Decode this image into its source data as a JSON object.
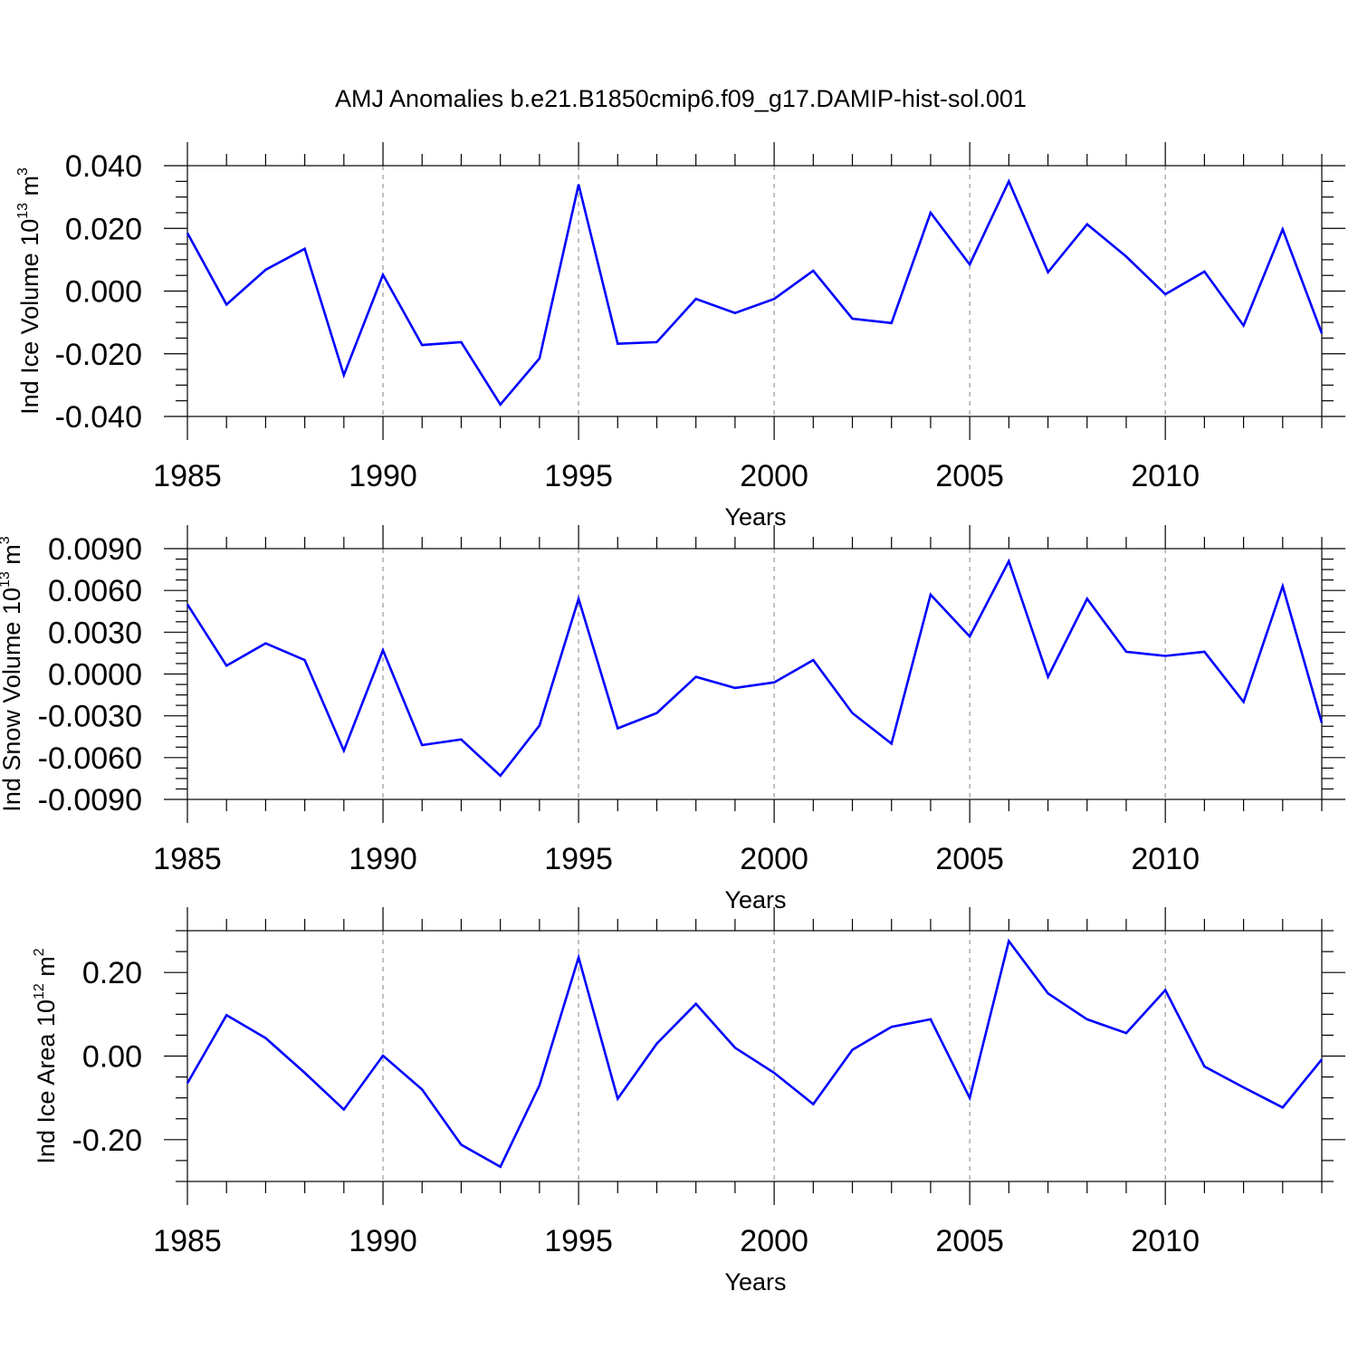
{
  "title": "AMJ Anomalies b.e21.B1850cmip6.f09_g17.DAMIP-hist-sol.001",
  "colors": {
    "series": "#0000ff",
    "axis": "#000000",
    "grid": "#999999"
  },
  "chart_data": [
    {
      "type": "line",
      "name": "ice-volume",
      "ylabel_main": "Ind Ice Volume 10",
      "ylabel_exp": "13",
      "ylabel_unit": " m",
      "ylabel_unit_exp": "3",
      "xlabel": "Years",
      "xlim": [
        1985,
        2014
      ],
      "ylim": [
        -0.04,
        0.04
      ],
      "yticks": [
        -0.04,
        -0.02,
        0.0,
        0.02,
        0.04
      ],
      "ytick_labels": [
        "-0.040",
        "-0.020",
        "0.000",
        "0.020",
        "0.040"
      ],
      "xticks": [
        1985,
        1990,
        1995,
        2000,
        2005,
        2010
      ],
      "xtick_labels": [
        "1985",
        "1990",
        "1995",
        "2000",
        "2005",
        "2010"
      ],
      "gridlines_x": [
        1990,
        1995,
        2000,
        2005,
        2010
      ],
      "x": [
        1985,
        1986,
        1987,
        1988,
        1989,
        1990,
        1991,
        1992,
        1993,
        1994,
        1995,
        1996,
        1997,
        1998,
        1999,
        2000,
        2001,
        2002,
        2003,
        2004,
        2005,
        2006,
        2007,
        2008,
        2009,
        2010,
        2011,
        2012,
        2013,
        2014
      ],
      "values": [
        0.0185,
        -0.0043,
        0.0068,
        0.0135,
        -0.0268,
        0.0052,
        -0.0172,
        -0.0163,
        -0.0362,
        -0.0215,
        0.034,
        -0.0168,
        -0.0163,
        -0.0025,
        -0.007,
        -0.0025,
        0.0065,
        -0.0088,
        -0.0102,
        0.025,
        0.0085,
        0.035,
        0.006,
        0.0213,
        0.011,
        -0.001,
        0.0062,
        -0.011,
        0.0197,
        -0.0135
      ]
    },
    {
      "type": "line",
      "name": "snow-volume",
      "ylabel_main": "Ind Snow Volume 10",
      "ylabel_exp": "13",
      "ylabel_unit": " m",
      "ylabel_unit_exp": "3",
      "xlabel": "Years",
      "xlim": [
        1985,
        2014
      ],
      "ylim": [
        -0.009,
        0.009
      ],
      "yticks": [
        -0.009,
        -0.006,
        -0.003,
        0.0,
        0.003,
        0.006,
        0.009
      ],
      "ytick_labels": [
        "-0.0090",
        "-0.0060",
        "-0.0030",
        "0.0000",
        "0.0030",
        "0.0060",
        "0.0090"
      ],
      "xticks": [
        1985,
        1990,
        1995,
        2000,
        2005,
        2010
      ],
      "xtick_labels": [
        "1985",
        "1990",
        "1995",
        "2000",
        "2005",
        "2010"
      ],
      "gridlines_x": [
        1990,
        1995,
        2000,
        2005,
        2010
      ],
      "x": [
        1985,
        1986,
        1987,
        1988,
        1989,
        1990,
        1991,
        1992,
        1993,
        1994,
        1995,
        1996,
        1997,
        1998,
        1999,
        2000,
        2001,
        2002,
        2003,
        2004,
        2005,
        2006,
        2007,
        2008,
        2009,
        2010,
        2011,
        2012,
        2013,
        2014
      ],
      "values": [
        0.005,
        0.0006,
        0.0022,
        0.001,
        -0.0055,
        0.0017,
        -0.0051,
        -0.0047,
        -0.0073,
        -0.0037,
        0.0054,
        -0.0039,
        -0.0028,
        -0.0002,
        -0.001,
        -0.0006,
        0.001,
        -0.0028,
        -0.005,
        0.0057,
        0.0027,
        0.0081,
        -0.0002,
        0.0054,
        0.0016,
        0.0013,
        0.0016,
        -0.002,
        0.0063,
        -0.0035
      ]
    },
    {
      "type": "line",
      "name": "ice-area",
      "ylabel_main": "Ind Ice Area 10",
      "ylabel_exp": "12",
      "ylabel_unit": " m",
      "ylabel_unit_exp": "2",
      "xlabel": "Years",
      "xlim": [
        1985,
        2014
      ],
      "ylim": [
        -0.3,
        0.3
      ],
      "yticks": [
        -0.2,
        0.0,
        0.2
      ],
      "ytick_labels": [
        "-0.20",
        "0.00",
        "0.20"
      ],
      "xticks": [
        1985,
        1990,
        1995,
        2000,
        2005,
        2010
      ],
      "xtick_labels": [
        "1985",
        "1990",
        "1995",
        "2000",
        "2005",
        "2010"
      ],
      "gridlines_x": [
        1990,
        1995,
        2000,
        2005,
        2010
      ],
      "x": [
        1985,
        1986,
        1987,
        1988,
        1989,
        1990,
        1991,
        1992,
        1993,
        1994,
        1995,
        1996,
        1997,
        1998,
        1999,
        2000,
        2001,
        2002,
        2003,
        2004,
        2005,
        2006,
        2007,
        2008,
        2009,
        2010,
        2011,
        2012,
        2013,
        2014
      ],
      "values": [
        -0.065,
        0.098,
        0.043,
        -0.04,
        -0.128,
        0.001,
        -0.08,
        -0.212,
        -0.265,
        -0.07,
        0.236,
        -0.102,
        0.03,
        0.125,
        0.02,
        -0.04,
        -0.115,
        0.015,
        0.07,
        0.088,
        -0.1,
        0.275,
        0.15,
        0.088,
        0.055,
        0.158,
        -0.025,
        -0.075,
        -0.123,
        -0.008
      ]
    }
  ]
}
